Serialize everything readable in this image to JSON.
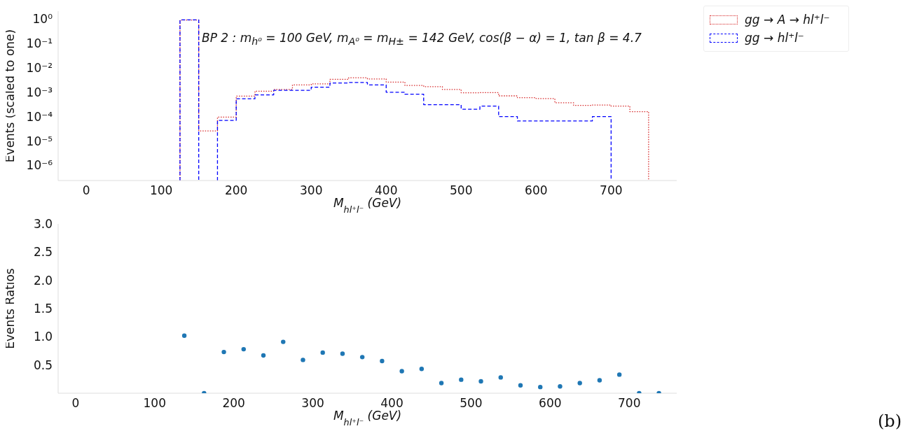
{
  "chart_data": [
    {
      "type": "histogram",
      "log": true,
      "ylabel": "Events (scaled to one)",
      "xlabel": "M$_{hl⁺l⁻}$ (GeV)",
      "legend": "top right",
      "grid": false,
      "annotations": [
        "BP 2 : m$_{h⁰}$ = 100 GeV, m$_{A⁰}$ = m$_{H±}$ = 142 GeV, cos(β − α) = 1, tan β = 4.7"
      ],
      "bins": [
        125,
        150,
        175,
        200,
        225,
        250,
        275,
        300,
        325,
        350,
        375,
        400,
        425,
        450,
        475,
        500,
        525,
        550,
        575,
        600,
        625,
        650,
        675,
        700,
        725,
        750
      ],
      "xlim": [
        -37.5,
        787.5
      ],
      "xticks": [
        0,
        100,
        200,
        300,
        400,
        500,
        600,
        700
      ],
      "ylim": [
        2.4e-07,
        2.1
      ],
      "yticks": [
        {
          "value": 1,
          "label": "10⁰"
        },
        {
          "value": 0.1,
          "label": "10⁻¹"
        },
        {
          "value": 0.01,
          "label": "10⁻²"
        },
        {
          "value": 0.001,
          "label": "10⁻³"
        },
        {
          "value": 0.0001,
          "label": "10⁻⁴"
        },
        {
          "value": 1e-05,
          "label": "10⁻⁵"
        },
        {
          "value": 1e-06,
          "label": "10⁻⁶"
        }
      ],
      "series": [
        {
          "name": "gg → A → hl⁺l⁻",
          "color": "#d62728",
          "line_style": "dotted",
          "values": [
            0.91,
            2.6e-05,
            9.5e-05,
            0.00069,
            0.0011,
            0.0013,
            0.002,
            0.0022,
            0.0034,
            0.0039,
            0.0035,
            0.0026,
            0.0019,
            0.0017,
            0.0013,
            0.00095,
            0.00096,
            0.00071,
            0.0006,
            0.00055,
            0.00037,
            0.00029,
            0.0003,
            0.00027,
            0.00016
          ]
        },
        {
          "name": "gg → hl⁺l⁻",
          "color": "#0000ff",
          "line_style": "dashed",
          "bins": [
            125,
            150,
            175,
            200,
            225,
            250,
            275,
            300,
            325,
            350,
            375,
            400,
            425,
            450,
            475,
            500,
            525,
            550,
            575,
            600,
            625,
            650,
            675,
            700
          ],
          "values": [
            0.93,
            null,
            7e-05,
            0.00054,
            0.00078,
            0.0012,
            0.0012,
            0.0016,
            0.0024,
            0.0025,
            0.002,
            0.001,
            0.00083,
            0.00031,
            0.00031,
            0.0002,
            0.00027,
            0.0001,
            6.6e-05,
            6.6e-05,
            6.6e-05,
            6.6e-05,
            0.0001
          ]
        }
      ]
    },
    {
      "type": "scatter",
      "ylabel": "Events Ratios",
      "xlabel": "M$_{hl⁺l⁻}$ (GeV)",
      "grid": false,
      "marker": "circle",
      "annotations": [
        "(b)"
      ],
      "x": [
        137.5,
        162.5,
        187.5,
        212.5,
        237.5,
        262.5,
        287.5,
        312.5,
        337.5,
        362.5,
        387.5,
        412.5,
        437.5,
        462.5,
        487.5,
        512.5,
        537.5,
        562.5,
        587.5,
        612.5,
        637.5,
        662.5,
        687.5,
        712.5,
        737.5
      ],
      "values": [
        1.02,
        0,
        0.73,
        0.78,
        0.67,
        0.91,
        0.59,
        0.72,
        0.7,
        0.64,
        0.57,
        0.39,
        0.43,
        0.18,
        0.24,
        0.21,
        0.28,
        0.14,
        0.11,
        0.12,
        0.18,
        0.23,
        0.33,
        0,
        0
      ],
      "color": "#1f77b4",
      "xlim": [
        -22,
        760
      ],
      "xticks": [
        0,
        100,
        200,
        300,
        400,
        500,
        600,
        700
      ],
      "ylim": [
        0,
        3
      ],
      "yticks": [
        {
          "value": 0.5,
          "label": "0.5"
        },
        {
          "value": 1,
          "label": "1.0"
        },
        {
          "value": 1.5,
          "label": "1.5"
        },
        {
          "value": 2,
          "label": "2.0"
        },
        {
          "value": 2.5,
          "label": "2.5"
        },
        {
          "value": 3,
          "label": "3.0"
        }
      ]
    }
  ]
}
